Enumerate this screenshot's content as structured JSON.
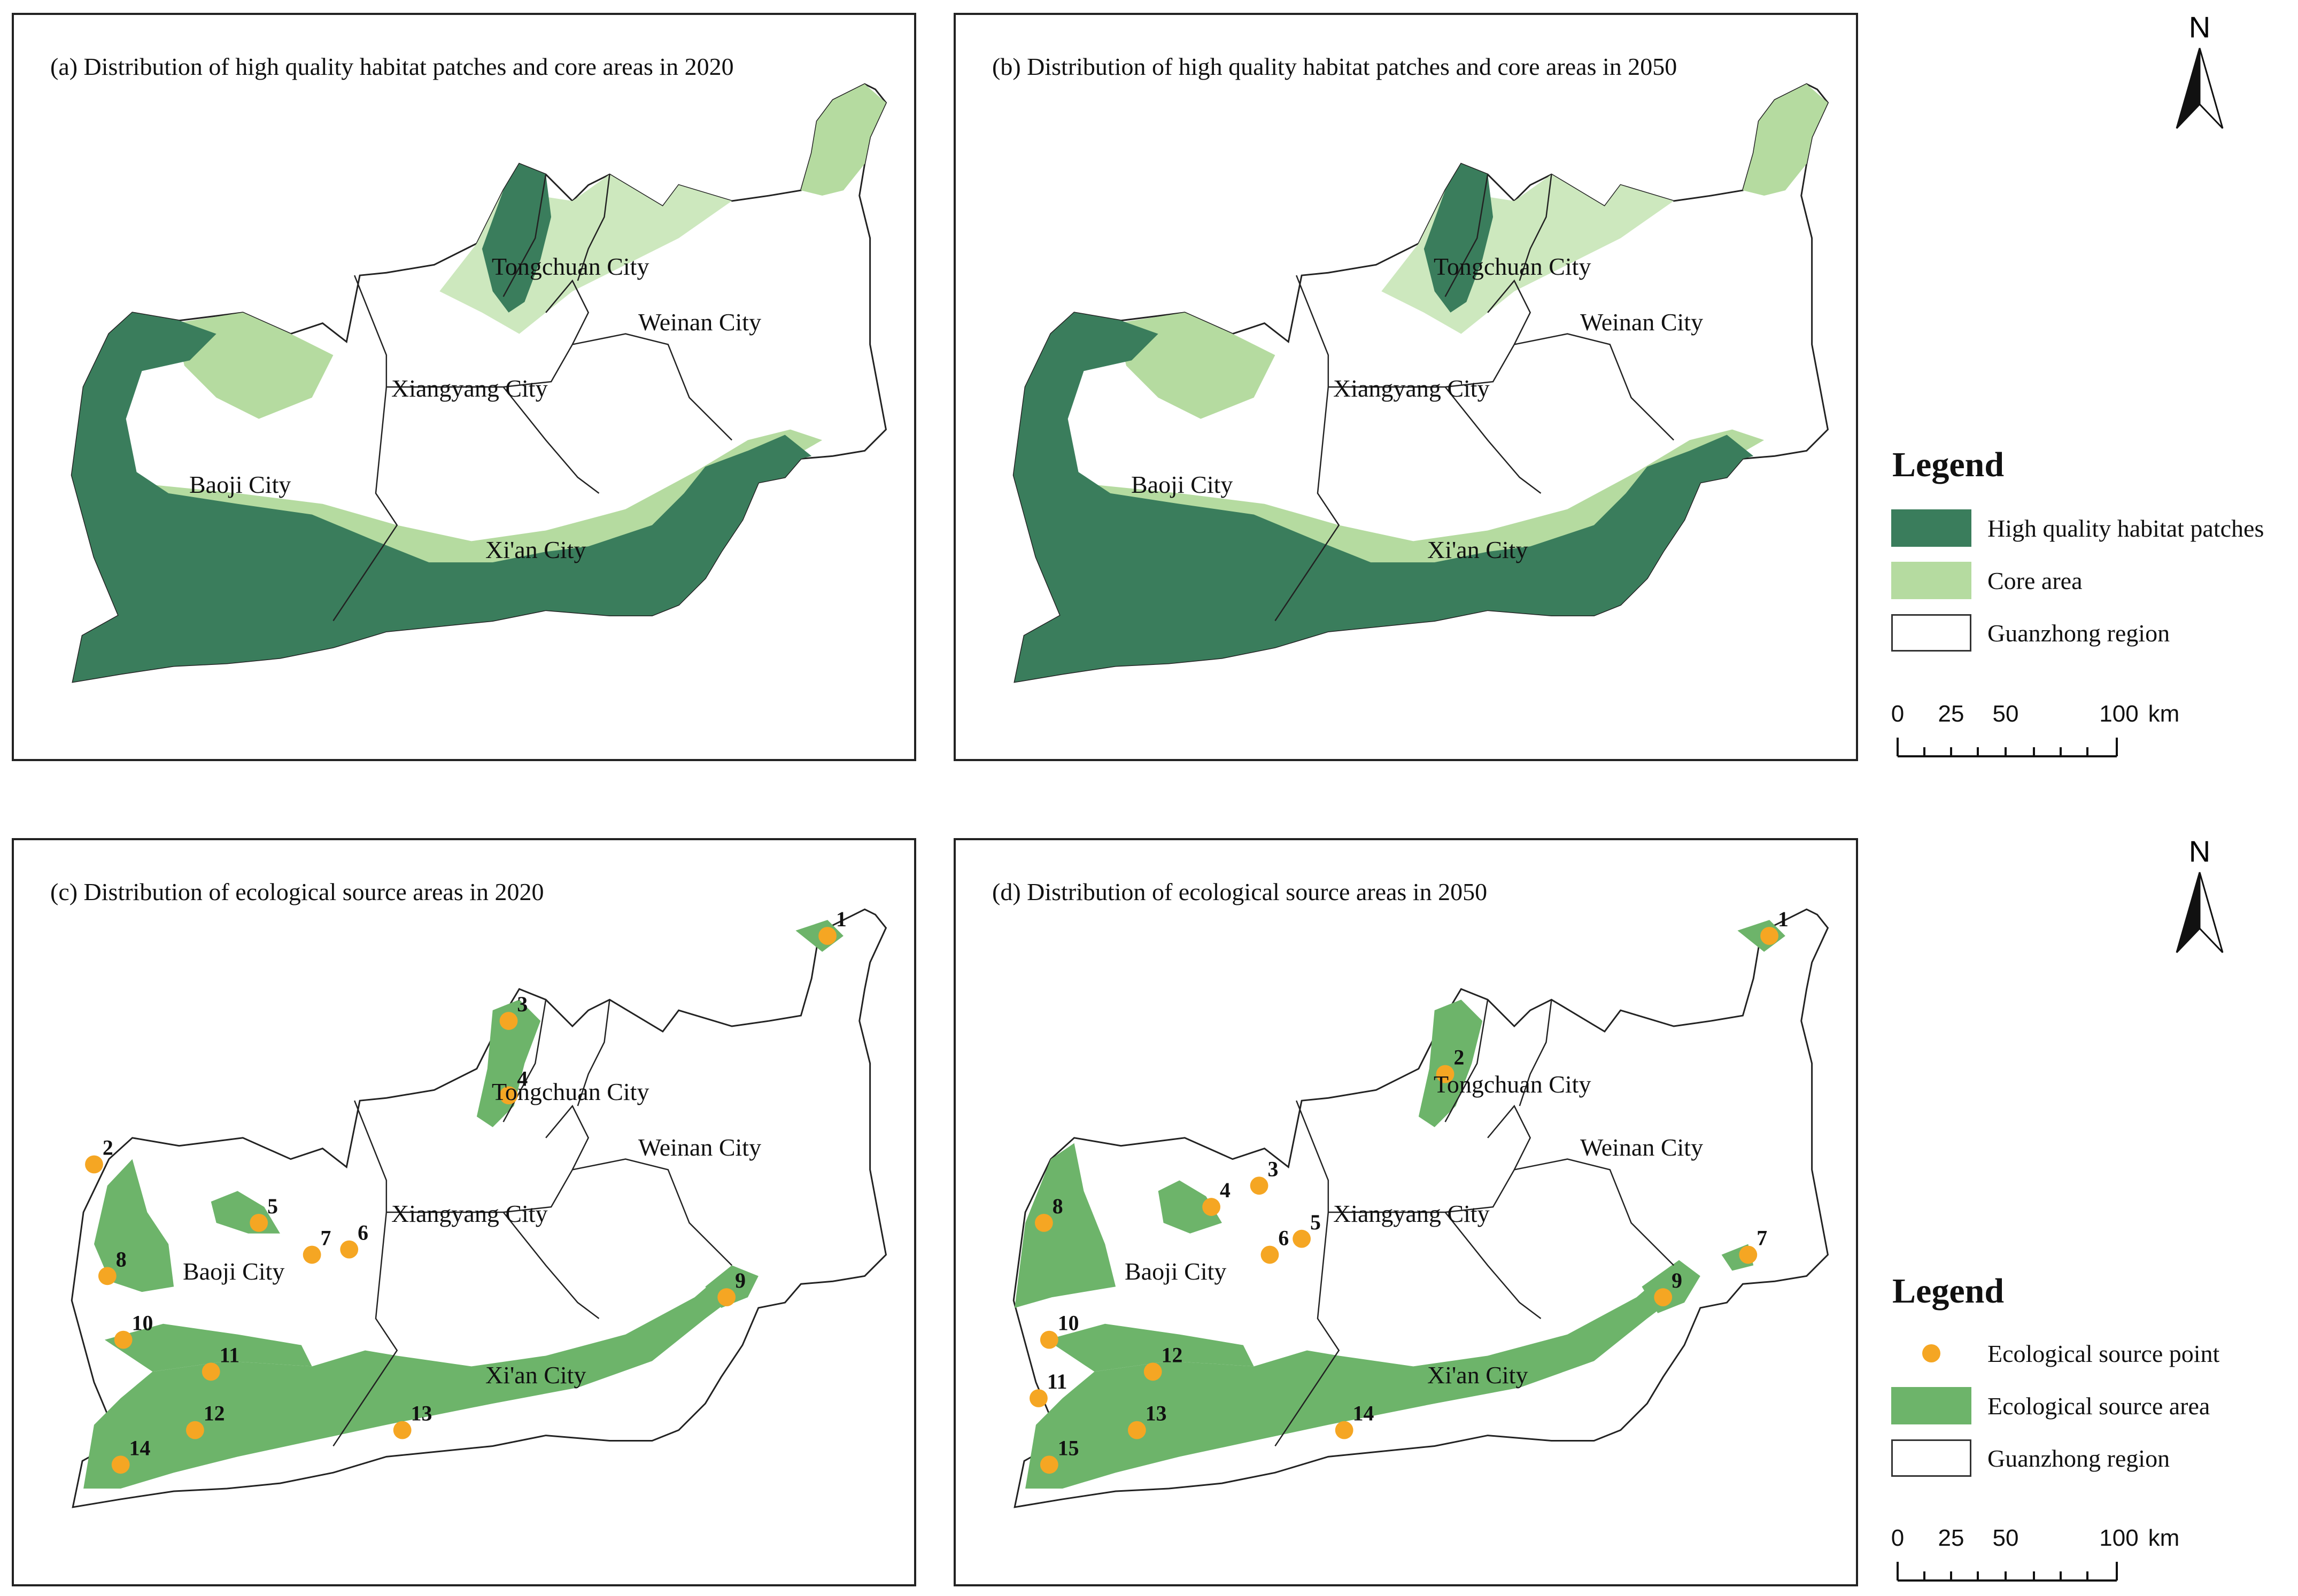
{
  "panels": {
    "a": {
      "title": "(a) Distribution of high quality habitat patches and core areas in 2020"
    },
    "b": {
      "title": "(b) Distribution of high quality habitat patches and core areas in 2050"
    },
    "c": {
      "title": "(c) Distribution of ecological source areas in 2020"
    },
    "d": {
      "title": "(d) Distribution of ecological source areas in 2050"
    }
  },
  "cities": {
    "tongchuan": "Tongchuan City",
    "weinan": "Weinan City",
    "xiangyang": "Xiangyang City",
    "baoji": "Baoji City",
    "xian": "Xi'an City"
  },
  "legend_top": {
    "title": "Legend",
    "items": [
      {
        "label": "High quality habitat patches",
        "color": "#3a7d5c"
      },
      {
        "label": "Core area",
        "color": "#b5dba0"
      },
      {
        "label": "Guanzhong region",
        "color": "#ffffff"
      }
    ]
  },
  "legend_bottom": {
    "title": "Legend",
    "items": [
      {
        "label": "Ecological source point",
        "color": "#f5a623"
      },
      {
        "label": "Ecological source area",
        "color": "#6db46a"
      },
      {
        "label": "Guanzhong region",
        "color": "#ffffff"
      }
    ]
  },
  "north_label": "N",
  "scale": {
    "ticks": [
      "0",
      "25",
      "50",
      "100"
    ],
    "unit": "km"
  },
  "source_points_2020": [
    "1",
    "2",
    "3",
    "4",
    "5",
    "6",
    "7",
    "8",
    "9",
    "10",
    "11",
    "12",
    "13",
    "14"
  ],
  "source_points_2050": [
    "1",
    "2",
    "3",
    "4",
    "5",
    "6",
    "7",
    "8",
    "9",
    "10",
    "11",
    "12",
    "13",
    "14",
    "15"
  ]
}
